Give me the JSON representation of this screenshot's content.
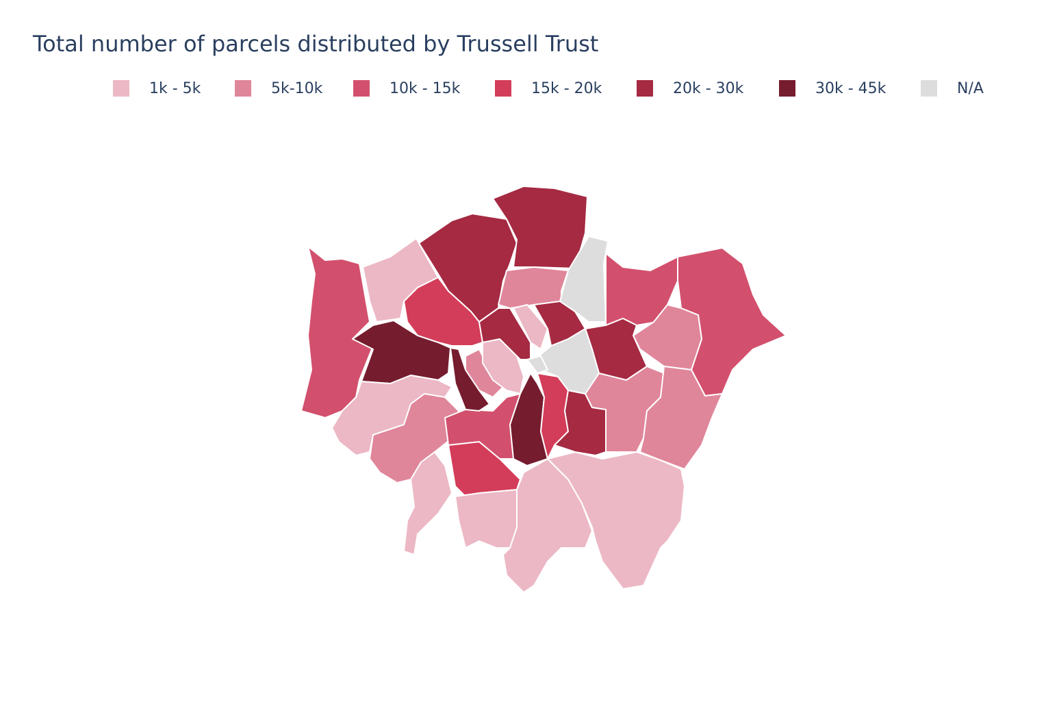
{
  "chart_data": {
    "type": "choropleth",
    "title": "Total number of parcels distributed by Trussell Trust",
    "legend": [
      {
        "name": "1k - 5k",
        "color": "#ecb8c5"
      },
      {
        "name": "5k-10k",
        "color": "#e0869a"
      },
      {
        "name": "10k - 15k",
        "color": "#d2506d"
      },
      {
        "name": "15k - 20k",
        "color": "#d33d59"
      },
      {
        "name": "20k - 30k",
        "color": "#a52a42"
      },
      {
        "name": "30k - 45k",
        "color": "#761c2f"
      },
      {
        "name": "N/A",
        "color": "#dddddd"
      }
    ]
  }
}
